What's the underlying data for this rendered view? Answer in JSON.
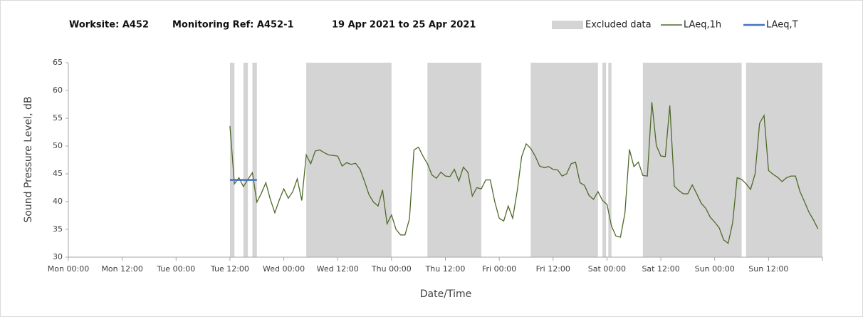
{
  "chart_data": {
    "type": "line",
    "title_parts": [
      "Worksite: A452",
      "Monitoring Ref: A452-1",
      "19 Apr 2021 to 25 Apr 2021"
    ],
    "xlabel": "Date/Time",
    "ylabel": "Sound Pressure Level, dB",
    "xlim": [
      0,
      168
    ],
    "xticks": [
      {
        "value": 0,
        "label": "Mon 00:00"
      },
      {
        "value": 12,
        "label": "Mon 12:00"
      },
      {
        "value": 24,
        "label": "Tue 00:00"
      },
      {
        "value": 36,
        "label": "Tue 12:00"
      },
      {
        "value": 48,
        "label": "Wed 00:00"
      },
      {
        "value": 60,
        "label": "Wed 12:00"
      },
      {
        "value": 72,
        "label": "Thu 00:00"
      },
      {
        "value": 84,
        "label": "Thu 12:00"
      },
      {
        "value": 96,
        "label": "Fri 00:00"
      },
      {
        "value": 108,
        "label": "Fri 12:00"
      },
      {
        "value": 120,
        "label": "Sat 00:00"
      },
      {
        "value": 132,
        "label": "Sat 12:00"
      },
      {
        "value": 144,
        "label": "Sun 00:00"
      },
      {
        "value": 156,
        "label": "Sun 12:00"
      }
    ],
    "ylim": [
      30,
      65
    ],
    "yticks": [
      30,
      35,
      40,
      45,
      50,
      55,
      60,
      65
    ],
    "excluded": {
      "name": "Excluded data",
      "color": "#d4d4d4",
      "ranges": [
        [
          36,
          37
        ],
        [
          39,
          40
        ],
        [
          41,
          42
        ],
        [
          53,
          72
        ],
        [
          80,
          92
        ],
        [
          103,
          118
        ],
        [
          119,
          119.8
        ],
        [
          120.3,
          121
        ],
        [
          128,
          150
        ],
        [
          151,
          168
        ]
      ]
    },
    "series": [
      {
        "name": "LAeq,1h",
        "color": "#4f6a2a",
        "x": [
          36,
          37,
          38,
          39,
          40,
          41,
          42,
          43,
          44,
          45,
          46,
          47,
          48,
          49,
          50,
          51,
          52,
          53,
          54,
          55,
          56,
          57,
          58,
          59,
          60,
          61,
          62,
          63,
          64,
          65,
          66,
          67,
          68,
          69,
          70,
          71,
          72,
          73,
          74,
          75,
          76,
          77,
          78,
          79,
          80,
          81,
          82,
          83,
          84,
          85,
          86,
          87,
          88,
          89,
          90,
          91,
          92,
          93,
          94,
          95,
          96,
          97,
          98,
          99,
          100,
          101,
          102,
          103,
          104,
          105,
          106,
          107,
          108,
          109,
          110,
          111,
          112,
          113,
          114,
          115,
          116,
          117,
          118,
          119,
          120,
          121,
          122,
          123,
          124,
          125,
          126,
          127,
          128,
          129,
          130,
          131,
          132,
          133,
          134,
          135,
          136,
          137,
          138,
          139,
          140,
          141,
          142,
          143,
          144,
          145,
          146,
          147,
          148,
          149,
          150,
          151,
          152,
          153,
          154,
          155,
          156,
          157,
          158,
          159,
          160,
          161,
          162,
          163,
          164,
          165,
          166,
          167
        ],
        "values": [
          53.6,
          43.2,
          44.3,
          42.7,
          44.0,
          45.2,
          39.9,
          41.5,
          43.4,
          40.4,
          38.0,
          40.3,
          42.3,
          40.6,
          41.8,
          44.1,
          40.2,
          48.4,
          46.8,
          49.1,
          49.3,
          48.8,
          48.4,
          48.3,
          48.2,
          46.4,
          47.0,
          46.7,
          46.9,
          45.8,
          43.6,
          41.2,
          39.9,
          39.2,
          42.1,
          36.0,
          37.6,
          35.0,
          34.0,
          34.0,
          36.9,
          49.3,
          49.8,
          48.2,
          46.8,
          44.8,
          44.2,
          45.3,
          44.6,
          44.5,
          45.8,
          43.7,
          46.2,
          45.3,
          41.0,
          42.5,
          42.3,
          43.9,
          43.9,
          40.0,
          37.0,
          36.5,
          39.2,
          37.0,
          41.9,
          48.1,
          50.4,
          49.6,
          48.2,
          46.4,
          46.1,
          46.3,
          45.8,
          45.7,
          44.6,
          45.0,
          46.8,
          47.1,
          43.4,
          42.9,
          41.1,
          40.4,
          41.8,
          40.2,
          39.5,
          35.6,
          33.8,
          33.6,
          37.9,
          49.4,
          46.3,
          47.1,
          44.7,
          44.6,
          57.9,
          50.1,
          48.2,
          48.1,
          57.3,
          42.8,
          42.0,
          41.4,
          41.4,
          43.0,
          41.4,
          39.7,
          38.8,
          37.2,
          36.3,
          35.3,
          33.1,
          32.5,
          36.2,
          44.3,
          44.0,
          43.2,
          42.2,
          45.0,
          54.1,
          55.5,
          45.6,
          44.9,
          44.4,
          43.6,
          44.3,
          44.6,
          44.6,
          41.8,
          40.0,
          38.1,
          36.7,
          35.1
        ]
      },
      {
        "name": "LAeq,T",
        "color": "#4472c4",
        "x": [
          36,
          42
        ],
        "values": [
          43.9,
          43.9
        ]
      }
    ]
  }
}
